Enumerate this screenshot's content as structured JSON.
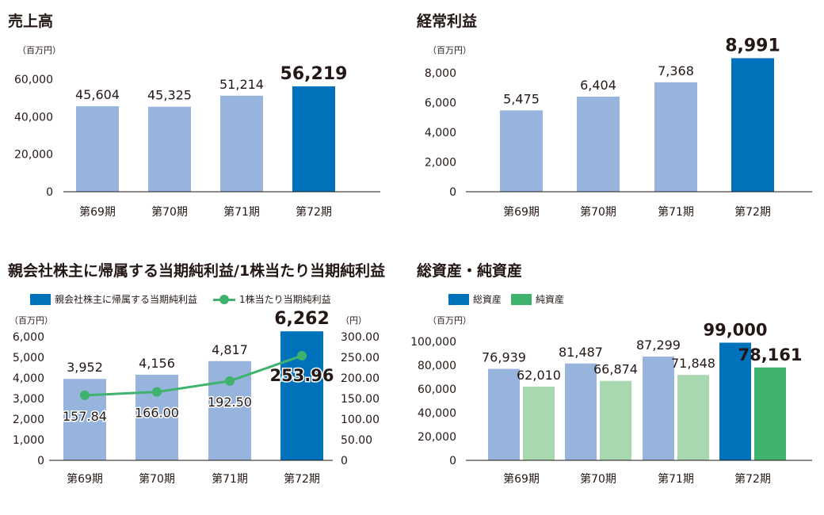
{
  "colors": {
    "past_bar": "#97b4dc",
    "current_bar": "#0072bc",
    "net_assets_past": "#a8d8b0",
    "net_assets_current": "#3fb36e",
    "eps_line": "#3fb36e",
    "axis": "#231815"
  },
  "chart_data": [
    {
      "type": "bar",
      "title": "売上高",
      "unit_label": "（百万円）",
      "categories": [
        "第69期",
        "第70期",
        "第71期",
        "第72期"
      ],
      "values": [
        45604,
        45325,
        51214,
        56219
      ],
      "value_labels": [
        "45,604",
        "45,325",
        "51,214",
        "56,219"
      ],
      "y_ticks": [
        "0",
        "20,000",
        "40,000",
        "60,000"
      ],
      "ylim": [
        0,
        60000
      ],
      "highlight_index": 3,
      "grid": false
    },
    {
      "type": "bar",
      "title": "経常利益",
      "unit_label": "（百万円）",
      "categories": [
        "第69期",
        "第70期",
        "第71期",
        "第72期"
      ],
      "values": [
        5475,
        6404,
        7368,
        8991
      ],
      "value_labels": [
        "5,475",
        "6,404",
        "7,368",
        "8,991"
      ],
      "y_ticks": [
        "0",
        "2,000",
        "4,000",
        "6,000",
        "8,000"
      ],
      "ylim": [
        0,
        8000
      ],
      "highlight_index": 3,
      "grid": false
    },
    {
      "type": "bar",
      "title": "親会社株主に帰属する当期純利益/1株当たり当期純利益",
      "unit_label": "（百万円）",
      "unit_label_right": "（円）",
      "categories": [
        "第69期",
        "第70期",
        "第71期",
        "第72期"
      ],
      "series": [
        {
          "name": "親会社株主に帰属する当期純利益",
          "kind": "bar",
          "values": [
            3952,
            4156,
            4817,
            6262
          ],
          "value_labels": [
            "3,952",
            "4,156",
            "4,817",
            "6,262"
          ]
        },
        {
          "name": "1株当たり当期純利益",
          "kind": "line",
          "axis": "right",
          "values": [
            157.84,
            166.0,
            192.5,
            253.96
          ],
          "value_labels": [
            "157.84",
            "166.00",
            "192.50",
            "253.96"
          ]
        }
      ],
      "y_ticks": [
        "0",
        "1,000",
        "2,000",
        "3,000",
        "4,000",
        "5,000",
        "6,000"
      ],
      "ylim": [
        0,
        6000
      ],
      "y2_ticks": [
        "0",
        "50.00",
        "100.00",
        "150.00",
        "200.00",
        "250.00",
        "300.00"
      ],
      "y2lim": [
        0,
        300
      ],
      "legend": "top-left",
      "highlight_index": 3,
      "grid": false
    },
    {
      "type": "bar",
      "title": "総資産・純資産",
      "unit_label": "（百万円）",
      "categories": [
        "第69期",
        "第70期",
        "第71期",
        "第72期"
      ],
      "series": [
        {
          "name": "総資産",
          "values": [
            76939,
            81487,
            87299,
            99000
          ],
          "value_labels": [
            "76,939",
            "81,487",
            "87,299",
            "99,000"
          ]
        },
        {
          "name": "純資産",
          "values": [
            62010,
            66874,
            71848,
            78161
          ],
          "value_labels": [
            "62,010",
            "66,874",
            "71,848",
            "78,161"
          ]
        }
      ],
      "y_ticks": [
        "0",
        "20,000",
        "40,000",
        "60,000",
        "80,000",
        "100,000"
      ],
      "ylim": [
        0,
        100000
      ],
      "legend": "top-left",
      "highlight_index": 3,
      "grid": false
    }
  ]
}
